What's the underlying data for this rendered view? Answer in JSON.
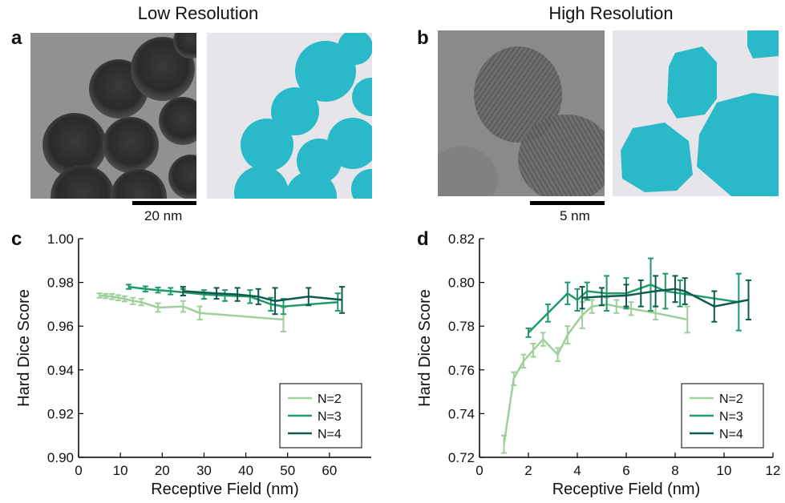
{
  "figure": {
    "col_titles": [
      "Low Resolution",
      "High Resolution"
    ],
    "panel_letters": [
      "a",
      "b",
      "c",
      "d"
    ],
    "scalebars": [
      "20 nm",
      "5 nm"
    ]
  },
  "colors": {
    "N2": "#9fcf9a",
    "N3": "#1f9a68",
    "N4": "#0f5a4f",
    "particle": "#2ab9c9",
    "mask_bg": "#e5e5ea",
    "tem_bg": "#8c8c8c"
  },
  "chart_data": [
    {
      "type": "line",
      "panel": "c",
      "xlabel": "Receptive Field (nm)",
      "ylabel": "Hard Dice Score",
      "xlim": [
        0,
        70
      ],
      "ylim": [
        0.9,
        1.0
      ],
      "xticks": [
        "0",
        "10",
        "20",
        "30",
        "40",
        "50",
        "60"
      ],
      "yticks": [
        "0.90",
        "0.92",
        "0.94",
        "0.96",
        "0.98",
        "1.00"
      ],
      "legend": "bottom-right",
      "legend_labels": [
        "N=2",
        "N=3",
        "N=4"
      ],
      "series": [
        {
          "name": "N=2",
          "color_key": "N2",
          "x": [
            5,
            6.5,
            8,
            9.5,
            11,
            13,
            15,
            19,
            25,
            29,
            49
          ],
          "y": [
            0.974,
            0.9738,
            0.9735,
            0.973,
            0.9725,
            0.9715,
            0.971,
            0.9685,
            0.969,
            0.966,
            0.963
          ],
          "err": [
            0.001,
            0.001,
            0.0012,
            0.0012,
            0.0012,
            0.0015,
            0.0015,
            0.002,
            0.0025,
            0.003,
            0.0055
          ]
        },
        {
          "name": "N=3",
          "color_key": "N3",
          "x": [
            12,
            16,
            19,
            22,
            25,
            30,
            35,
            41,
            46,
            49,
            62
          ],
          "y": [
            0.978,
            0.977,
            0.9765,
            0.976,
            0.9755,
            0.9745,
            0.974,
            0.9735,
            0.97,
            0.969,
            0.971
          ],
          "err": [
            0.001,
            0.0012,
            0.0012,
            0.0015,
            0.0015,
            0.002,
            0.0025,
            0.003,
            0.003,
            0.0035,
            0.004
          ]
        },
        {
          "name": "N=4",
          "color_key": "N4",
          "x": [
            25,
            33,
            38,
            43,
            47,
            55,
            63
          ],
          "y": [
            0.976,
            0.975,
            0.9745,
            0.9735,
            0.9715,
            0.9735,
            0.972
          ],
          "err": [
            0.002,
            0.0025,
            0.003,
            0.0035,
            0.006,
            0.004,
            0.006
          ]
        }
      ]
    },
    {
      "type": "line",
      "panel": "d",
      "xlabel": "Receptive Field (nm)",
      "ylabel": "Hard Dice Score",
      "xlim": [
        0,
        12
      ],
      "ylim": [
        0.72,
        0.82
      ],
      "xticks": [
        "0",
        "2",
        "4",
        "6",
        "8",
        "10",
        "12"
      ],
      "yticks": [
        "0.72",
        "0.74",
        "0.76",
        "0.78",
        "0.80",
        "0.82"
      ],
      "legend": "bottom-right",
      "legend_labels": [
        "N=2",
        "N=3",
        "N=4"
      ],
      "series": [
        {
          "name": "N=2",
          "color_key": "N2",
          "x": [
            1.0,
            1.4,
            1.8,
            2.2,
            2.6,
            3.2,
            3.6,
            4.2,
            4.6,
            5.2,
            5.6,
            6.2,
            7.2,
            8.5
          ],
          "y": [
            0.726,
            0.756,
            0.764,
            0.769,
            0.774,
            0.767,
            0.776,
            0.785,
            0.789,
            0.79,
            0.789,
            0.788,
            0.786,
            0.783
          ],
          "err": [
            0.004,
            0.003,
            0.003,
            0.003,
            0.003,
            0.003,
            0.004,
            0.006,
            0.003,
            0.003,
            0.003,
            0.003,
            0.003,
            0.006
          ]
        },
        {
          "name": "N=3",
          "color_key": "N3",
          "x": [
            2.0,
            2.8,
            3.6,
            4.0,
            4.4,
            5.2,
            6.0,
            7.0,
            7.6,
            8.2,
            10.6
          ],
          "y": [
            0.777,
            0.786,
            0.795,
            0.792,
            0.796,
            0.795,
            0.795,
            0.799,
            0.796,
            0.795,
            0.791
          ],
          "err": [
            0.002,
            0.004,
            0.005,
            0.005,
            0.004,
            0.008,
            0.007,
            0.012,
            0.008,
            0.006,
            0.013
          ]
        },
        {
          "name": "N=4",
          "color_key": "N4",
          "x": [
            4.2,
            5.0,
            6.0,
            6.6,
            7.2,
            8.0,
            8.4,
            9.6,
            11.0
          ],
          "y": [
            0.793,
            0.7935,
            0.794,
            0.795,
            0.796,
            0.797,
            0.796,
            0.789,
            0.792
          ],
          "err": [
            0.005,
            0.004,
            0.005,
            0.006,
            0.007,
            0.006,
            0.006,
            0.007,
            0.009
          ]
        }
      ]
    }
  ]
}
